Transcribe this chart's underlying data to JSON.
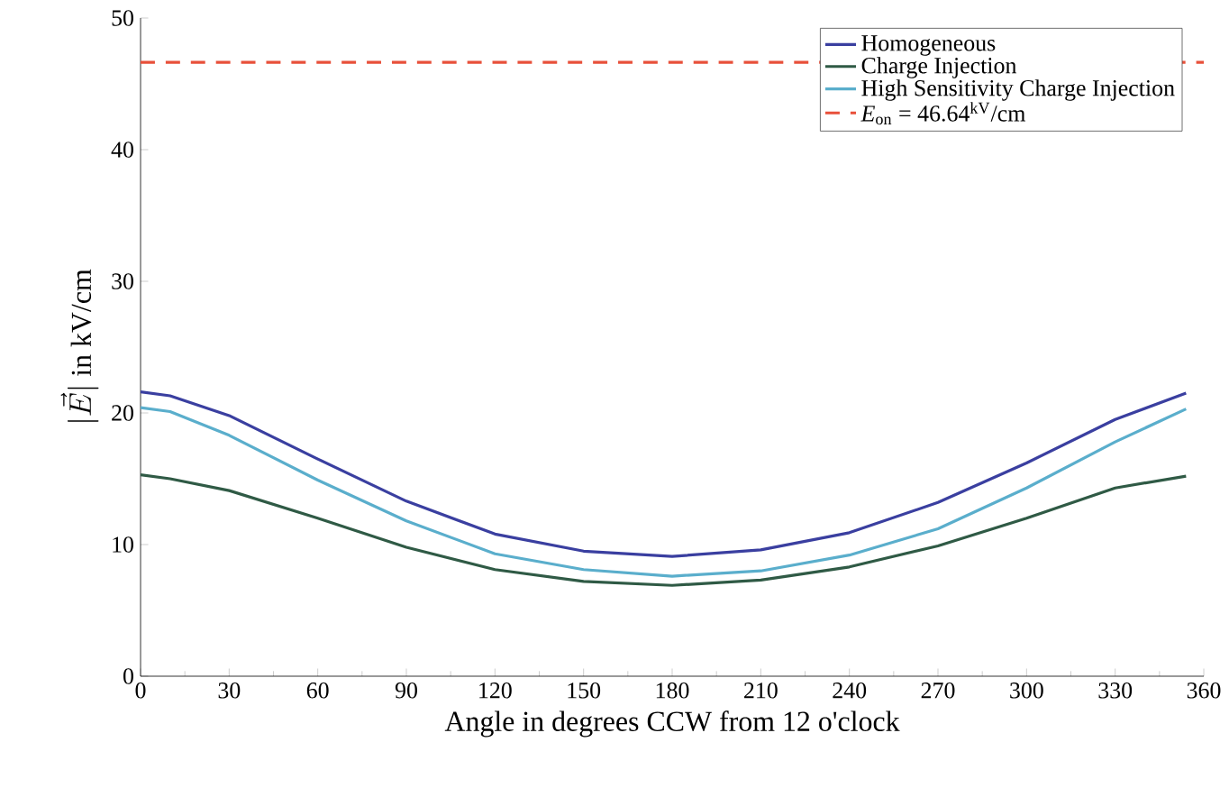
{
  "chart_data": {
    "type": "line",
    "xlabel": "Angle in degrees CCW from 12 o'clock",
    "ylabel": "|\\vec{E}|\\mbox{ in kV/cm}",
    "xlim": [
      0,
      360
    ],
    "ylim": [
      0,
      50
    ],
    "xticks": [
      0,
      30,
      60,
      90,
      120,
      150,
      180,
      210,
      240,
      270,
      300,
      330,
      360
    ],
    "yticks": [
      0,
      10,
      20,
      30,
      40,
      50
    ],
    "grid": false,
    "legend": "top right",
    "line_style": "solid",
    "marker": "none",
    "x": [
      0,
      10,
      30,
      60,
      90,
      120,
      150,
      180,
      210,
      240,
      270,
      300,
      330,
      354
    ],
    "series": [
      {
        "name": "Homogeneous",
        "color": "#3a3fa0",
        "values": [
          21.6,
          21.3,
          19.8,
          16.5,
          13.3,
          10.8,
          9.5,
          9.1,
          9.6,
          10.9,
          13.2,
          16.2,
          19.5,
          21.5
        ]
      },
      {
        "name": "Charge Injection",
        "color": "#2f5a45",
        "values": [
          15.3,
          15.0,
          14.1,
          12.0,
          9.8,
          8.1,
          7.2,
          6.9,
          7.3,
          8.3,
          9.9,
          12.0,
          14.3,
          15.2
        ]
      },
      {
        "name": "High Sensitivity Charge Injection",
        "color": "#5aaecc",
        "values": [
          20.4,
          20.1,
          18.3,
          14.9,
          11.8,
          9.3,
          8.1,
          7.6,
          8.0,
          9.2,
          11.2,
          14.3,
          17.8,
          20.3
        ]
      }
    ],
    "ref_lines": [
      {
        "axis": "y",
        "value": 46.64,
        "label": "*E*$_{on}$ = 46.64$^{kV}$/cm",
        "color": "#e8503a",
        "line_style": "dashed"
      }
    ]
  }
}
